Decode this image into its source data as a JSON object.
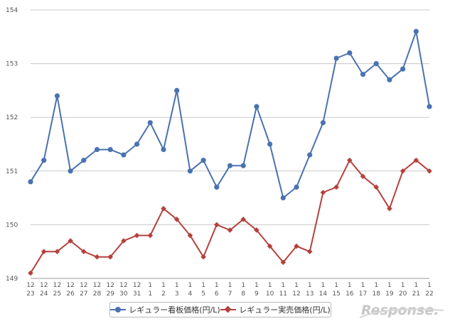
{
  "chart_data": {
    "type": "line",
    "categories": [
      [
        "12",
        "23"
      ],
      [
        "12",
        "24"
      ],
      [
        "12",
        "25"
      ],
      [
        "12",
        "26"
      ],
      [
        "12",
        "27"
      ],
      [
        "12",
        "28"
      ],
      [
        "12",
        "29"
      ],
      [
        "12",
        "30"
      ],
      [
        "12",
        "31"
      ],
      [
        "1",
        "1"
      ],
      [
        "1",
        "2"
      ],
      [
        "1",
        "3"
      ],
      [
        "1",
        "4"
      ],
      [
        "1",
        "5"
      ],
      [
        "1",
        "6"
      ],
      [
        "1",
        "7"
      ],
      [
        "1",
        "8"
      ],
      [
        "1",
        "9"
      ],
      [
        "1",
        "10"
      ],
      [
        "1",
        "11"
      ],
      [
        "1",
        "12"
      ],
      [
        "1",
        "13"
      ],
      [
        "1",
        "14"
      ],
      [
        "1",
        "15"
      ],
      [
        "1",
        "16"
      ],
      [
        "1",
        "17"
      ],
      [
        "1",
        "18"
      ],
      [
        "1",
        "19"
      ],
      [
        "1",
        "20"
      ],
      [
        "1",
        "21"
      ],
      [
        "1",
        "22"
      ]
    ],
    "ylim": [
      149,
      154
    ],
    "yticks": [
      "149",
      "150",
      "151",
      "152",
      "153",
      "154"
    ],
    "grid": true,
    "legend_position": "bottom",
    "series": [
      {
        "name": "レギュラー看板価格(円/L)",
        "color": "#4a72b0",
        "marker": "circle",
        "values": [
          150.8,
          151.2,
          152.4,
          151.0,
          151.2,
          151.4,
          151.4,
          151.3,
          151.5,
          151.9,
          151.4,
          152.5,
          151.0,
          151.2,
          150.7,
          151.1,
          151.1,
          152.2,
          151.5,
          150.5,
          150.7,
          151.3,
          151.9,
          153.1,
          153.2,
          152.8,
          153.0,
          152.7,
          152.9,
          153.6,
          152.2
        ]
      },
      {
        "name": "レギュラー実売価格(円/L)",
        "color": "#b5413d",
        "marker": "diamond",
        "values": [
          149.1,
          149.5,
          149.5,
          149.7,
          149.5,
          149.4,
          149.4,
          149.7,
          149.8,
          149.8,
          150.3,
          150.1,
          149.8,
          149.4,
          150.0,
          149.9,
          150.1,
          149.9,
          149.6,
          149.3,
          149.6,
          149.5,
          150.6,
          150.7,
          151.2,
          150.9,
          150.7,
          150.3,
          151.0,
          151.2,
          151.0
        ]
      }
    ]
  },
  "logo": {
    "text": "Response."
  }
}
